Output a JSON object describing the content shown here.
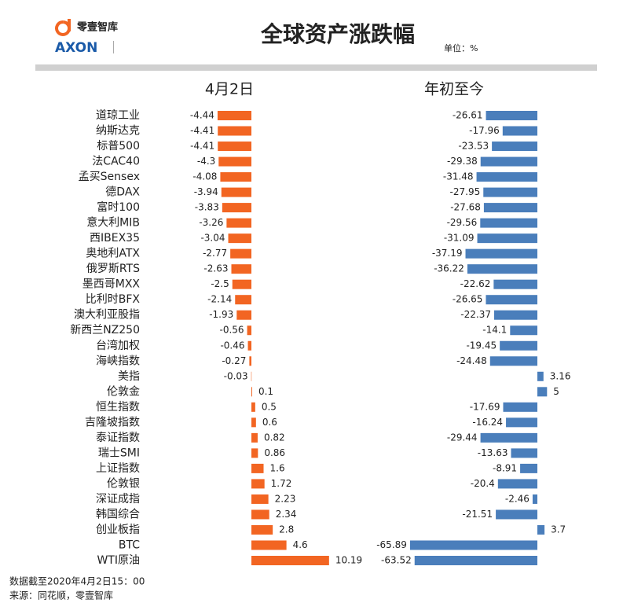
{
  "brand": {
    "name": "零壹智库",
    "logo": "AXON"
  },
  "chart_data": {
    "type": "bar",
    "title": "全球资产涨跌幅",
    "unit": "单位：%",
    "categories": [
      "道琼工业",
      "纳斯达克",
      "标普500",
      "法CAC40",
      "孟买Sensex",
      "德DAX",
      "富时100",
      "意大利MIB",
      "西IBEX35",
      "奥地利ATX",
      "俄罗斯RTS",
      "墨西哥MXX",
      "比利时BFX",
      "澳大利亚股指",
      "新西兰NZ250",
      "台湾加权",
      "海峡指数",
      "美指",
      "伦敦金",
      "恒生指数",
      "吉隆坡指数",
      "泰证指数",
      "瑞士SMI",
      "上证指数",
      "伦敦银",
      "深证成指",
      "韩国综合",
      "创业板指",
      "BTC",
      "WTI原油"
    ],
    "series": [
      {
        "name": "4月2日",
        "color": "#f26522",
        "values": [
          -4.44,
          -4.41,
          -4.41,
          -4.3,
          -4.08,
          -3.94,
          -3.83,
          -3.26,
          -3.04,
          -2.77,
          -2.63,
          -2.5,
          -2.14,
          -1.93,
          -0.56,
          -0.46,
          -0.27,
          -0.03,
          0.1,
          0.5,
          0.6,
          0.82,
          0.86,
          1.6,
          1.72,
          2.23,
          2.34,
          2.8,
          4.6,
          10.19
        ]
      },
      {
        "name": "年初至今",
        "color": "#4a7ebb",
        "values": [
          -26.61,
          -17.96,
          -23.53,
          -29.38,
          -31.48,
          -27.95,
          -27.68,
          -29.56,
          -31.09,
          -37.19,
          -36.22,
          -22.62,
          -26.65,
          -22.37,
          -14.1,
          -19.45,
          -24.48,
          3.16,
          5,
          -17.69,
          -16.24,
          -29.44,
          -13.63,
          -8.91,
          -20.4,
          -2.46,
          -21.51,
          3.7,
          -65.89,
          -63.52
        ]
      }
    ]
  },
  "notes": [
    "数据截至2020年4月2日15：00",
    "来源：同花顺，零壹智库"
  ]
}
